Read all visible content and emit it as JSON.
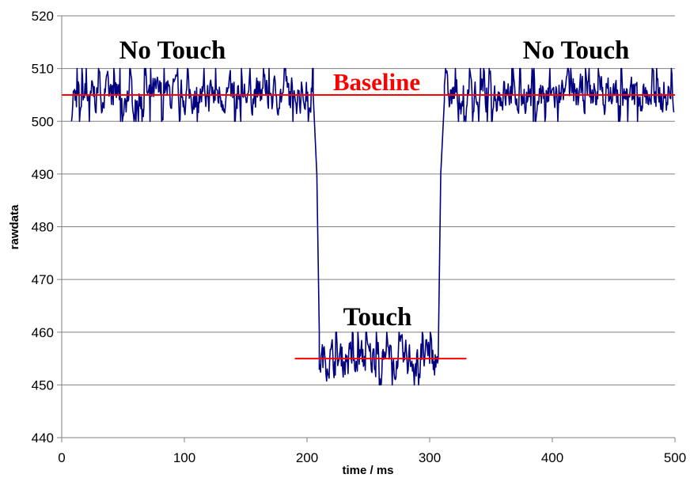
{
  "chart_data": {
    "type": "line",
    "title": "",
    "xlabel": "time / ms",
    "ylabel": "rawdata",
    "xlim": [
      0,
      500
    ],
    "ylim": [
      440,
      520
    ],
    "xticks": [
      "0",
      "100",
      "200",
      "300",
      "400",
      "500"
    ],
    "yticks": [
      "440",
      "450",
      "460",
      "470",
      "480",
      "490",
      "500",
      "510",
      "520"
    ],
    "grid": "horizontal",
    "series": [
      {
        "segments": [
          {
            "x_start": 8,
            "x_end": 205,
            "mean": 505,
            "noise": [
              500,
              510
            ]
          },
          {
            "x_start": 205,
            "x_end": 208,
            "transition": [
              505,
              490
            ]
          },
          {
            "x_start": 208,
            "x_end": 210,
            "transition": [
              490,
              460
            ]
          },
          {
            "x_start": 210,
            "x_end": 307,
            "mean": 455,
            "noise": [
              450,
              460
            ]
          },
          {
            "x_start": 307,
            "x_end": 309,
            "transition": [
              455,
              490
            ]
          },
          {
            "x_start": 309,
            "x_end": 312,
            "transition": [
              490,
              504
            ]
          },
          {
            "x_start": 312,
            "x_end": 499,
            "mean": 505,
            "noise": [
              500,
              510
            ]
          }
        ]
      }
    ],
    "reference_lines": [
      {
        "x": [
          0,
          500
        ],
        "y": 505
      },
      {
        "x": [
          190,
          330
        ],
        "y": 455
      }
    ],
    "annotations": {
      "no_touch_left": "No Touch",
      "no_touch_right": "No Touch",
      "baseline": "Baseline",
      "touch": "Touch"
    },
    "colors": {
      "series": "#000080",
      "reference": "#ff0000",
      "grid": "#808080"
    }
  }
}
